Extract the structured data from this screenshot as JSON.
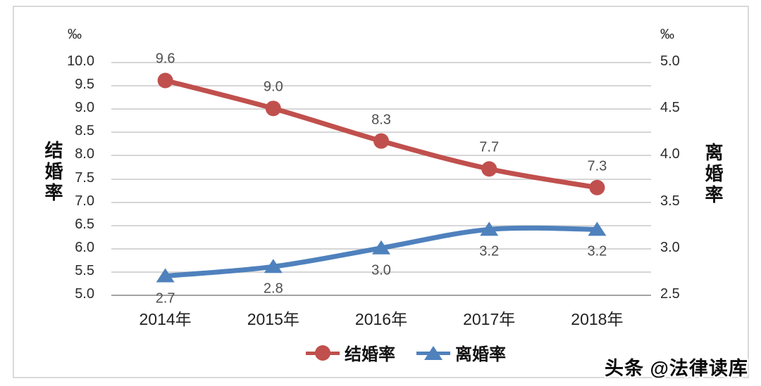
{
  "chart_data": {
    "type": "line",
    "categories": [
      "2014年",
      "2015年",
      "2016年",
      "2017年",
      "2018年"
    ],
    "series": [
      {
        "id": "marriage-rate",
        "name": "结婚率",
        "axis": "left",
        "color": "#c0504d",
        "marker": "circle",
        "values": [
          9.6,
          9.0,
          8.3,
          7.7,
          7.3
        ],
        "data_labels": [
          "9.6",
          "9.0",
          "8.3",
          "7.7",
          "7.3"
        ],
        "label_position": "above"
      },
      {
        "id": "divorce-rate",
        "name": "离婚率",
        "axis": "right",
        "color": "#4f81bd",
        "marker": "triangle",
        "values": [
          2.7,
          2.8,
          3.0,
          3.2,
          3.2
        ],
        "data_labels": [
          "2.7",
          "2.8",
          "3.0",
          "3.2",
          "3.2"
        ],
        "label_position": "below"
      }
    ],
    "left_axis": {
      "unit": "‰",
      "title": "结婚率",
      "min": 5.0,
      "max": 10.0,
      "step": 0.5,
      "ticks": [
        "10.0",
        "9.5",
        "9.0",
        "8.5",
        "8.0",
        "7.5",
        "7.0",
        "6.5",
        "6.0",
        "5.5",
        "5.0"
      ]
    },
    "right_axis": {
      "unit": "‰",
      "title": "离婚率",
      "min": 2.5,
      "max": 5.0,
      "step": 0.5,
      "ticks": [
        "5.0",
        "4.5",
        "4.0",
        "3.5",
        "3.0",
        "2.5"
      ]
    },
    "grid": true,
    "legend_position": "bottom",
    "title": ""
  },
  "legend": {
    "items": [
      {
        "label": "结婚率",
        "color": "#c0504d",
        "marker": "circle"
      },
      {
        "label": "离婚率",
        "color": "#4f81bd",
        "marker": "triangle"
      }
    ]
  },
  "watermark": "头条 @法律读库",
  "colors": {
    "marriage_line": "#c0504d",
    "divorce_line": "#4f81bd",
    "gridline": "#d6d6d6",
    "axis_line": "#a3a3a3",
    "frame_border": "#d9d9d9"
  }
}
